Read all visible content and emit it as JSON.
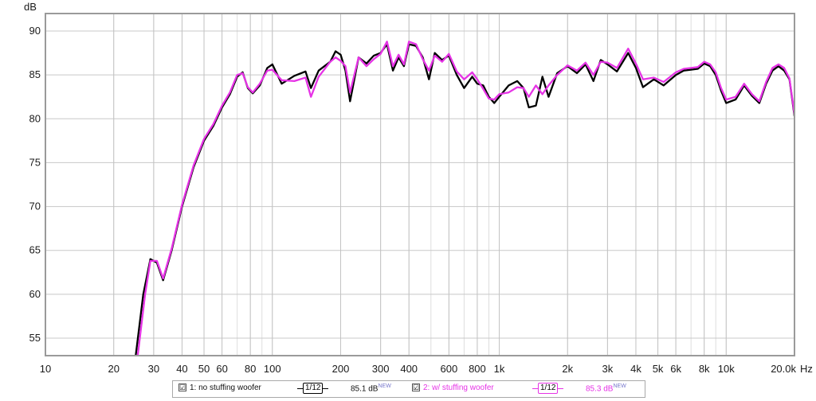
{
  "chart_data": {
    "type": "line",
    "xscale": "log",
    "ylabel": "dB",
    "xunit": "Hz",
    "xlim": [
      10,
      20000
    ],
    "ylim": [
      53,
      92
    ],
    "grid": true,
    "y_ticks": [
      55,
      60,
      65,
      70,
      75,
      80,
      85,
      90
    ],
    "x_ticks": [
      {
        "v": 10,
        "label": "10"
      },
      {
        "v": 20,
        "label": "20"
      },
      {
        "v": 30,
        "label": "30"
      },
      {
        "v": 40,
        "label": "40"
      },
      {
        "v": 50,
        "label": "50"
      },
      {
        "v": 60,
        "label": "60"
      },
      {
        "v": 80,
        "label": "80"
      },
      {
        "v": 100,
        "label": "100"
      },
      {
        "v": 200,
        "label": "200"
      },
      {
        "v": 300,
        "label": "300"
      },
      {
        "v": 400,
        "label": "400"
      },
      {
        "v": 600,
        "label": "600"
      },
      {
        "v": 800,
        "label": "800"
      },
      {
        "v": 1000,
        "label": "1k"
      },
      {
        "v": 2000,
        "label": "2k"
      },
      {
        "v": 3000,
        "label": "3k"
      },
      {
        "v": 4000,
        "label": "4k"
      },
      {
        "v": 5000,
        "label": "5k"
      },
      {
        "v": 6000,
        "label": "6k"
      },
      {
        "v": 8000,
        "label": "8k"
      },
      {
        "v": 10000,
        "label": "10k"
      },
      {
        "v": 20000,
        "label": "20.0k"
      }
    ],
    "series": [
      {
        "name": "1: no stuffing woofer",
        "color": "#000000",
        "points": [
          [
            25,
            53
          ],
          [
            27,
            60
          ],
          [
            29,
            64
          ],
          [
            31,
            63.6
          ],
          [
            33,
            61.6
          ],
          [
            36,
            65
          ],
          [
            40,
            70
          ],
          [
            45,
            74.5
          ],
          [
            50,
            77.5
          ],
          [
            55,
            79.2
          ],
          [
            60,
            81.3
          ],
          [
            65,
            82.8
          ],
          [
            70,
            84.8
          ],
          [
            74,
            85.3
          ],
          [
            78,
            83.5
          ],
          [
            82,
            82.9
          ],
          [
            88,
            83.8
          ],
          [
            95,
            85.8
          ],
          [
            100,
            86.2
          ],
          [
            110,
            84
          ],
          [
            125,
            84.9
          ],
          [
            140,
            85.4
          ],
          [
            148,
            83.5
          ],
          [
            160,
            85.5
          ],
          [
            180,
            86.5
          ],
          [
            190,
            87.7
          ],
          [
            200,
            87.3
          ],
          [
            210,
            85.5
          ],
          [
            220,
            82
          ],
          [
            240,
            87
          ],
          [
            260,
            86.3
          ],
          [
            280,
            87.2
          ],
          [
            300,
            87.5
          ],
          [
            320,
            88.5
          ],
          [
            340,
            85.5
          ],
          [
            360,
            87
          ],
          [
            380,
            86
          ],
          [
            400,
            88.5
          ],
          [
            430,
            88.3
          ],
          [
            460,
            87
          ],
          [
            490,
            84.5
          ],
          [
            520,
            87.5
          ],
          [
            560,
            86.7
          ],
          [
            600,
            87.2
          ],
          [
            650,
            85
          ],
          [
            700,
            83.5
          ],
          [
            760,
            84.8
          ],
          [
            800,
            84
          ],
          [
            850,
            83.8
          ],
          [
            900,
            82.5
          ],
          [
            950,
            81.8
          ],
          [
            1000,
            82.5
          ],
          [
            1100,
            83.8
          ],
          [
            1200,
            84.3
          ],
          [
            1280,
            83.5
          ],
          [
            1350,
            81.3
          ],
          [
            1450,
            81.5
          ],
          [
            1550,
            84.8
          ],
          [
            1650,
            82.5
          ],
          [
            1800,
            85.2
          ],
          [
            2000,
            86
          ],
          [
            2200,
            85.2
          ],
          [
            2400,
            86.2
          ],
          [
            2600,
            84.3
          ],
          [
            2800,
            86.7
          ],
          [
            3000,
            86.2
          ],
          [
            3300,
            85.4
          ],
          [
            3700,
            87.5
          ],
          [
            4000,
            85.8
          ],
          [
            4300,
            83.6
          ],
          [
            4800,
            84.5
          ],
          [
            5300,
            83.8
          ],
          [
            6000,
            85
          ],
          [
            6500,
            85.5
          ],
          [
            7000,
            85.6
          ],
          [
            7500,
            85.7
          ],
          [
            8000,
            86.3
          ],
          [
            8500,
            86
          ],
          [
            9000,
            85
          ],
          [
            9500,
            83.2
          ],
          [
            10000,
            81.8
          ],
          [
            11000,
            82.2
          ],
          [
            12000,
            83.8
          ],
          [
            13000,
            82.6
          ],
          [
            14000,
            81.8
          ],
          [
            15000,
            84
          ],
          [
            16000,
            85.5
          ],
          [
            17000,
            86
          ],
          [
            18000,
            85.5
          ],
          [
            19000,
            84.5
          ],
          [
            20000,
            80.3
          ]
        ]
      },
      {
        "name": "2: w/ stuffing woofer",
        "color": "#e633e6",
        "points": [
          [
            25.5,
            53
          ],
          [
            27.5,
            60
          ],
          [
            29,
            63.8
          ],
          [
            31,
            63.8
          ],
          [
            33,
            61.8
          ],
          [
            36,
            65.2
          ],
          [
            40,
            70.2
          ],
          [
            45,
            74.7
          ],
          [
            50,
            77.7
          ],
          [
            55,
            79.4
          ],
          [
            60,
            81.5
          ],
          [
            65,
            83
          ],
          [
            70,
            85
          ],
          [
            74,
            85.2
          ],
          [
            78,
            83.6
          ],
          [
            82,
            83
          ],
          [
            88,
            84
          ],
          [
            95,
            85.5
          ],
          [
            100,
            85.6
          ],
          [
            110,
            84.4
          ],
          [
            125,
            84.3
          ],
          [
            140,
            84.7
          ],
          [
            148,
            82.5
          ],
          [
            160,
            84.8
          ],
          [
            180,
            86.5
          ],
          [
            190,
            87
          ],
          [
            200,
            86.6
          ],
          [
            210,
            86
          ],
          [
            220,
            83
          ],
          [
            240,
            87
          ],
          [
            260,
            86
          ],
          [
            280,
            86.8
          ],
          [
            300,
            87.4
          ],
          [
            320,
            88.8
          ],
          [
            340,
            86
          ],
          [
            360,
            87.3
          ],
          [
            380,
            86.2
          ],
          [
            400,
            88.8
          ],
          [
            430,
            88.5
          ],
          [
            460,
            86.8
          ],
          [
            490,
            85.5
          ],
          [
            520,
            87.2
          ],
          [
            560,
            86.5
          ],
          [
            600,
            87.4
          ],
          [
            650,
            85.4
          ],
          [
            700,
            84.5
          ],
          [
            760,
            85.3
          ],
          [
            800,
            84.5
          ],
          [
            850,
            83.4
          ],
          [
            900,
            82.3
          ],
          [
            950,
            82.2
          ],
          [
            1000,
            82.8
          ],
          [
            1100,
            83
          ],
          [
            1200,
            83.6
          ],
          [
            1280,
            83.5
          ],
          [
            1350,
            82.5
          ],
          [
            1450,
            83.8
          ],
          [
            1550,
            82.8
          ],
          [
            1650,
            83.8
          ],
          [
            1800,
            85
          ],
          [
            2000,
            86.1
          ],
          [
            2200,
            85.5
          ],
          [
            2400,
            86.4
          ],
          [
            2600,
            85
          ],
          [
            2800,
            86.5
          ],
          [
            3000,
            86.4
          ],
          [
            3300,
            85.8
          ],
          [
            3700,
            88
          ],
          [
            4000,
            86.3
          ],
          [
            4300,
            84.5
          ],
          [
            4800,
            84.7
          ],
          [
            5300,
            84.2
          ],
          [
            6000,
            85.3
          ],
          [
            6500,
            85.7
          ],
          [
            7000,
            85.8
          ],
          [
            7500,
            85.9
          ],
          [
            8000,
            86.5
          ],
          [
            8500,
            86.2
          ],
          [
            9000,
            85.3
          ],
          [
            9500,
            83.5
          ],
          [
            10000,
            82.2
          ],
          [
            11000,
            82.5
          ],
          [
            12000,
            84
          ],
          [
            13000,
            82.8
          ],
          [
            14000,
            82
          ],
          [
            15000,
            84.2
          ],
          [
            16000,
            85.8
          ],
          [
            17000,
            86.2
          ],
          [
            18000,
            85.8
          ],
          [
            19000,
            84.6
          ],
          [
            20000,
            80.5
          ]
        ]
      }
    ]
  },
  "legend": {
    "items": [
      {
        "checkbox": "☑",
        "label": "1: no stuffing woofer",
        "smoothing": "1/12",
        "level": "85.1 dB",
        "level_tag": "NEW",
        "color": "#000000"
      },
      {
        "checkbox": "☑",
        "label": "2: w/ stuffing woofer",
        "smoothing": "1/12",
        "level": "85.3 dB",
        "level_tag": "NEW",
        "color": "#e633e6"
      }
    ]
  }
}
